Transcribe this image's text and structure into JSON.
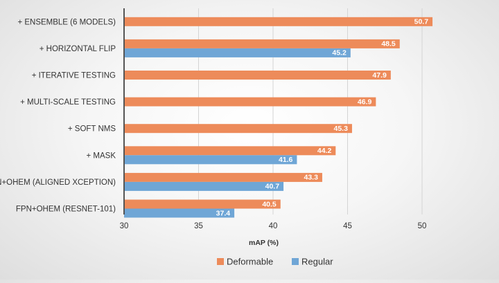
{
  "chart_data": {
    "type": "bar",
    "orientation": "horizontal",
    "categories": [
      "+ ENSEMBLE (6 MODELS)",
      "+ HORIZONTAL FLIP",
      "+ ITERATIVE TESTING",
      "+ MULTI-SCALE TESTING",
      "+ SOFT NMS",
      "+ MASK",
      "FPN+OHEM (ALIGNED XCEPTION)",
      "FPN+OHEM (RESNET-101)"
    ],
    "series": [
      {
        "name": "Deformable",
        "color": "#ED8B5A",
        "values": [
          50.7,
          48.5,
          47.9,
          46.9,
          45.3,
          44.2,
          43.3,
          40.5
        ]
      },
      {
        "name": "Regular",
        "color": "#6FA6D6",
        "values": [
          null,
          45.2,
          null,
          null,
          null,
          41.6,
          40.7,
          37.4
        ]
      }
    ],
    "data_labels": {
      "Deformable": [
        "50.7",
        "48.5",
        "47.9",
        "46.9",
        "45.3",
        "44.2",
        "43.3",
        "40.5"
      ],
      "Regular": [
        null,
        "45.2",
        null,
        null,
        null,
        "41.6",
        "40.7",
        "37.4"
      ]
    },
    "xlim": [
      30,
      52
    ],
    "xticks": [
      30,
      35,
      40,
      45,
      50
    ],
    "tick_labels": [
      "30",
      "35",
      "40",
      "45",
      "50"
    ],
    "xlabel": "mAP (%)",
    "ylabel": "",
    "title": "",
    "grid": true,
    "legend_position": "bottom"
  }
}
